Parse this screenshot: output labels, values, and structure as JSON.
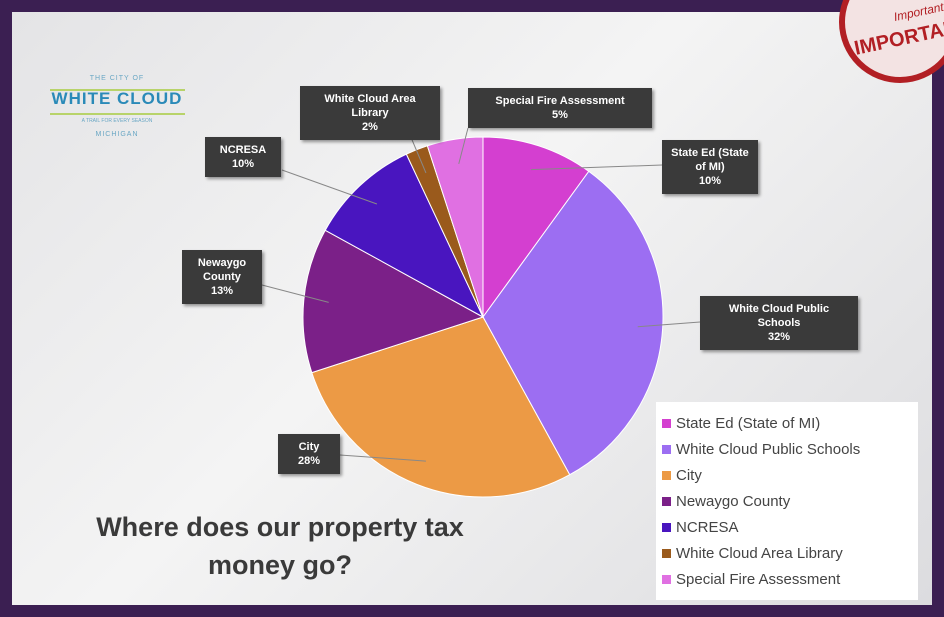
{
  "logo": {
    "top": "THE CITY OF",
    "name": "WHITE CLOUD",
    "tagline": "A TRAIL FOR EVERY SEASON",
    "bottom": "MICHIGAN"
  },
  "stamp": {
    "script": "Important",
    "word": "IMPORTANT"
  },
  "chart_data": {
    "type": "pie",
    "title": "Where does our property tax money go?",
    "categories": [
      "State Ed (State of MI)",
      "White Cloud Public Schools",
      "City",
      "Newaygo County",
      "NCRESA",
      "White Cloud Area Library",
      "Special Fire Assessment"
    ],
    "values": [
      10,
      32,
      28,
      13,
      10,
      2,
      5
    ],
    "value_labels": [
      "10%",
      "32%",
      "28%",
      "13%",
      "10%",
      "2%",
      "5%"
    ],
    "colors": [
      "#d43fd0",
      "#9c6ef2",
      "#ec9a45",
      "#7b2088",
      "#4915bf",
      "#9a5a1c",
      "#e070e2"
    ],
    "legend": "bottom-right"
  }
}
